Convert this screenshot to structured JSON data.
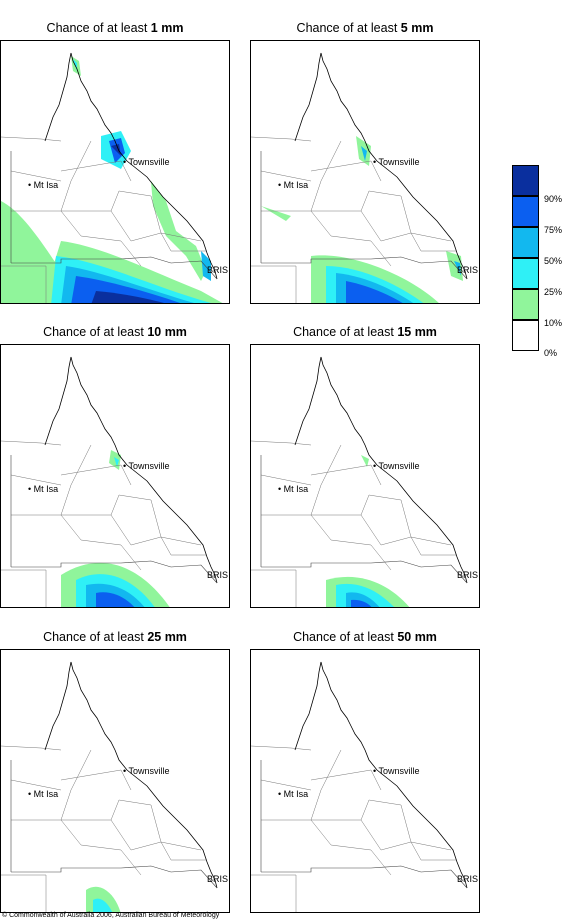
{
  "panels": [
    {
      "prefix": "Chance of at least",
      "amount": "1 mm"
    },
    {
      "prefix": "Chance of at least",
      "amount": "5 mm"
    },
    {
      "prefix": "Chance of at least",
      "amount": "10 mm"
    },
    {
      "prefix": "Chance of at least",
      "amount": "15 mm"
    },
    {
      "prefix": "Chance of at least",
      "amount": "25 mm"
    },
    {
      "prefix": "Chance of at least",
      "amount": "50 mm"
    }
  ],
  "places": {
    "townsville": "Townsville",
    "mt_isa": "Mt Isa",
    "bris": "BRIS"
  },
  "legend": {
    "labels": [
      "90%",
      "75%",
      "50%",
      "25%",
      "10%",
      "0%"
    ],
    "colors": [
      "#0a2f9e",
      "#0b5ff0",
      "#12b8ef",
      "#2ff0f6",
      "#90f59b",
      "#ffffff"
    ]
  },
  "copyright": "© Commonwealth of Australia 2006, Australian Bureau of Meteorology"
}
